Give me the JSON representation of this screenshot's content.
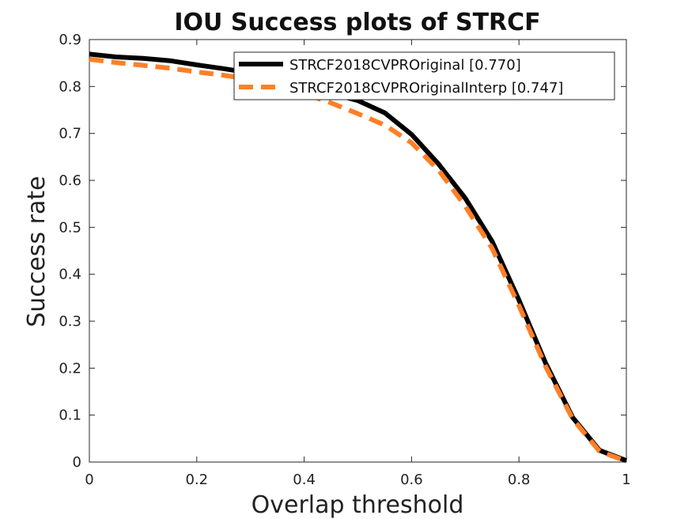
{
  "chart_data": {
    "type": "line",
    "title": "IOU Success plots of STRCF",
    "xlabel": "Overlap threshold",
    "ylabel": "Success rate",
    "xlim": [
      0,
      1
    ],
    "ylim": [
      0,
      0.9
    ],
    "xticks": [
      "0",
      "0.2",
      "0.4",
      "0.6",
      "0.8",
      "1"
    ],
    "yticks": [
      "0",
      "0.1",
      "0.2",
      "0.3",
      "0.4",
      "0.5",
      "0.6",
      "0.7",
      "0.8",
      "0.9"
    ],
    "grid": false,
    "legend_position": "top-right",
    "x": [
      0,
      0.05,
      0.1,
      0.15,
      0.2,
      0.25,
      0.3,
      0.35,
      0.4,
      0.45,
      0.5,
      0.55,
      0.6,
      0.65,
      0.7,
      0.75,
      0.8,
      0.85,
      0.9,
      0.95,
      1.0
    ],
    "series": [
      {
        "name": "STRCF2018CVPROriginal [0.770]",
        "color": "#000000",
        "style": "solid",
        "values": [
          0.869,
          0.863,
          0.86,
          0.855,
          0.846,
          0.838,
          0.829,
          0.816,
          0.802,
          0.785,
          0.77,
          0.744,
          0.698,
          0.635,
          0.562,
          0.47,
          0.345,
          0.21,
          0.095,
          0.025,
          0.003
        ]
      },
      {
        "name": "STRCF2018CVPROriginalInterp [0.747]",
        "color": "#FF7F27",
        "style": "dashed",
        "values": [
          0.858,
          0.851,
          0.845,
          0.839,
          0.831,
          0.824,
          0.815,
          0.8,
          0.785,
          0.765,
          0.742,
          0.718,
          0.68,
          0.622,
          0.545,
          0.455,
          0.333,
          0.203,
          0.092,
          0.023,
          0.002
        ]
      }
    ]
  }
}
